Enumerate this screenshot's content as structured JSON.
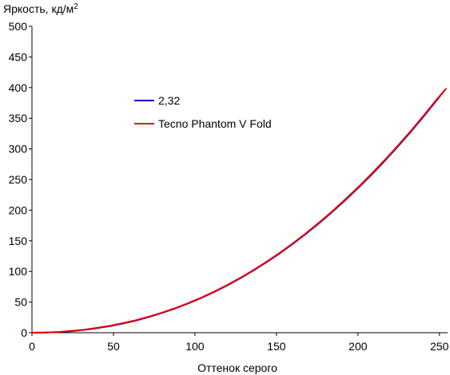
{
  "chart_data": {
    "type": "line",
    "ylabel": "Яркость, кд/м",
    "ylabel_superscript": "2",
    "xlabel": "Оттенок серого",
    "xlim": [
      0,
      255
    ],
    "ylim": [
      0,
      500
    ],
    "xticks": [
      0,
      50,
      100,
      150,
      200,
      250
    ],
    "yticks": [
      0,
      50,
      100,
      150,
      200,
      250,
      300,
      350,
      400,
      450,
      500
    ],
    "grid": false,
    "legend_position": "upper-left",
    "series": [
      {
        "name": "2,32",
        "color": "#0000cc",
        "x": [
          0,
          8,
          16,
          24,
          32,
          40,
          48,
          56,
          64,
          72,
          80,
          88,
          96,
          104,
          112,
          120,
          128,
          136,
          144,
          152,
          160,
          168,
          176,
          184,
          192,
          200,
          208,
          216,
          224,
          232,
          240,
          248,
          253
        ],
        "y": [
          0,
          0.2,
          1,
          2.5,
          4.6,
          7.4,
          10.9,
          15.1,
          20.1,
          25.8,
          32.4,
          39.7,
          47.9,
          56.9,
          66.8,
          77.5,
          89.2,
          101.7,
          115.2,
          129.6,
          144.9,
          161.2,
          178.4,
          196.6,
          215.8,
          236,
          257.2,
          279.3,
          302.5,
          326.7,
          351.9,
          378.2,
          395
        ]
      },
      {
        "name": "Tecno Phantom V Fold",
        "color": "#ee0000",
        "x": [
          0,
          8,
          16,
          24,
          32,
          40,
          48,
          56,
          64,
          72,
          80,
          88,
          96,
          104,
          112,
          120,
          128,
          136,
          144,
          152,
          160,
          168,
          176,
          184,
          192,
          200,
          208,
          216,
          224,
          232,
          240,
          248,
          254
        ],
        "y": [
          0,
          0.3,
          1.2,
          2.8,
          5,
          7.9,
          11.4,
          15.7,
          20.6,
          26.4,
          33,
          40.2,
          48.4,
          57.4,
          67.3,
          78.1,
          89.8,
          102.4,
          115.9,
          130.4,
          145.8,
          162.1,
          179.4,
          197.7,
          216.9,
          237.1,
          258.4,
          280.6,
          303.8,
          328,
          353.3,
          379.6,
          398
        ]
      }
    ]
  }
}
